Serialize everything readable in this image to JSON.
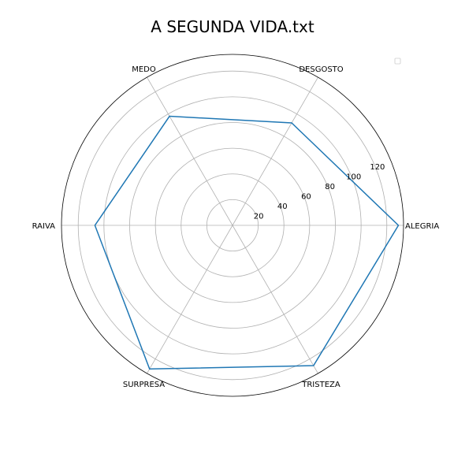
{
  "chart_data": {
    "type": "radar",
    "title": "A SEGUNDA VIDA.txt",
    "categories": [
      "ALEGRIA",
      "DESGOSTO",
      "MEDO",
      "RAIVA",
      "SURPRESA",
      "TRISTEZA"
    ],
    "rticks": [
      20,
      40,
      60,
      80,
      100,
      120
    ],
    "rlim": [
      0,
      133
    ],
    "grid": true,
    "legend": "top-right",
    "series": [
      {
        "color": "#1f77b4",
        "values": [
          129,
          92,
          98,
          107,
          129,
          126
        ]
      }
    ]
  }
}
